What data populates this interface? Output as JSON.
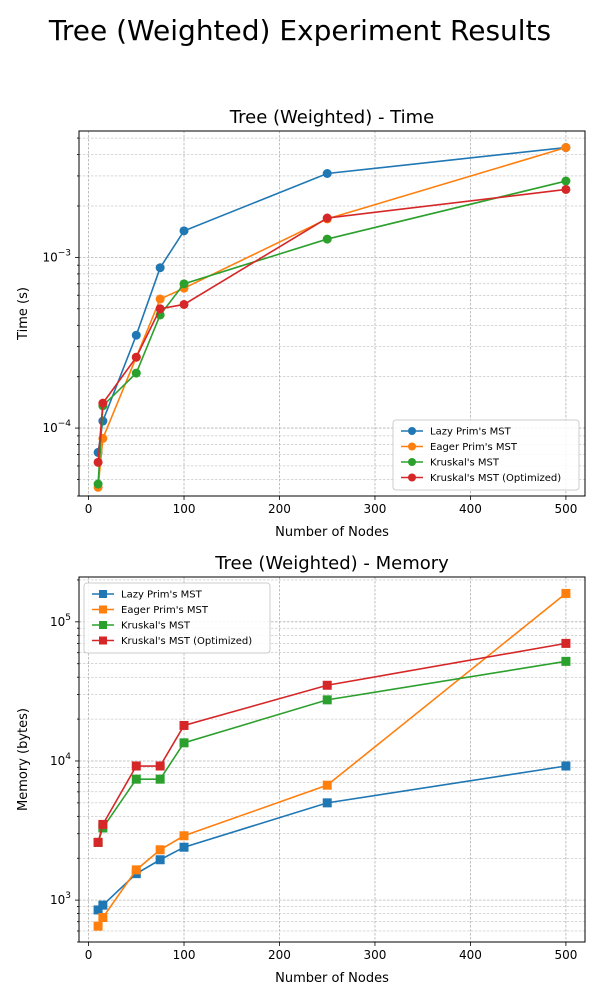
{
  "figure_title": "Tree (Weighted) Experiment Results",
  "colors": {
    "lazy": "#1f77b4",
    "eager": "#ff7f0e",
    "kruskal": "#2ca02c",
    "kruskal_opt": "#d62728"
  },
  "chart_data": [
    {
      "type": "line",
      "title": "Tree (Weighted) - Time",
      "xlabel": "Number of Nodes",
      "ylabel": "Time (s)",
      "yscale": "log",
      "marker": "circle",
      "xlim": [
        -10,
        520
      ],
      "ylim": [
        4e-05,
        0.0055
      ],
      "xticks": [
        0,
        100,
        200,
        300,
        400,
        500
      ],
      "yticks": [
        {
          "value": 0.0001,
          "base": "10",
          "exp": "−4"
        },
        {
          "value": 0.001,
          "base": "10",
          "exp": "−3"
        }
      ],
      "grid": true,
      "legend_position": "lower-right",
      "x": [
        10,
        15,
        50,
        75,
        100,
        250,
        500
      ],
      "series": [
        {
          "name": "Lazy Prim's MST",
          "color": "#1f77b4",
          "values": [
            7.2e-05,
            0.00011,
            0.00035,
            0.00087,
            0.00143,
            0.0031,
            0.0044
          ]
        },
        {
          "name": "Eager Prim's MST",
          "color": "#ff7f0e",
          "values": [
            4.5e-05,
            8.7e-05,
            0.00026,
            0.00057,
            0.00066,
            0.00168,
            0.0044
          ]
        },
        {
          "name": "Kruskal's MST",
          "color": "#2ca02c",
          "values": [
            4.7e-05,
            0.000135,
            0.00021,
            0.00046,
            0.0007,
            0.00128,
            0.0028
          ]
        },
        {
          "name": "Kruskal's MST (Optimized)",
          "color": "#d62728",
          "values": [
            6.3e-05,
            0.00014,
            0.00026,
            0.0005,
            0.00053,
            0.0017,
            0.0025
          ]
        }
      ]
    },
    {
      "type": "line",
      "title": "Tree (Weighted) - Memory",
      "xlabel": "Number of Nodes",
      "ylabel": "Memory (bytes)",
      "yscale": "log",
      "marker": "square",
      "xlim": [
        -10,
        520
      ],
      "ylim": [
        500,
        210000
      ],
      "xticks": [
        0,
        100,
        200,
        300,
        400,
        500
      ],
      "yticks": [
        {
          "value": 1000,
          "base": "10",
          "exp": "3"
        },
        {
          "value": 10000,
          "base": "10",
          "exp": "4"
        },
        {
          "value": 100000,
          "base": "10",
          "exp": "5"
        }
      ],
      "grid": true,
      "legend_position": "upper-left",
      "x": [
        10,
        15,
        50,
        75,
        100,
        250,
        500
      ],
      "series": [
        {
          "name": "Lazy Prim's MST",
          "color": "#1f77b4",
          "values": [
            850,
            920,
            1550,
            1950,
            2400,
            5000,
            9200
          ]
        },
        {
          "name": "Eager Prim's MST",
          "color": "#ff7f0e",
          "values": [
            650,
            750,
            1650,
            2300,
            2900,
            6700,
            160000
          ]
        },
        {
          "name": "Kruskal's MST",
          "color": "#2ca02c",
          "values": [
            2600,
            3300,
            7400,
            7400,
            13500,
            27500,
            52000
          ]
        },
        {
          "name": "Kruskal's MST (Optimized)",
          "color": "#d62728",
          "values": [
            2600,
            3500,
            9200,
            9200,
            18000,
            35000,
            70000
          ]
        }
      ]
    }
  ]
}
